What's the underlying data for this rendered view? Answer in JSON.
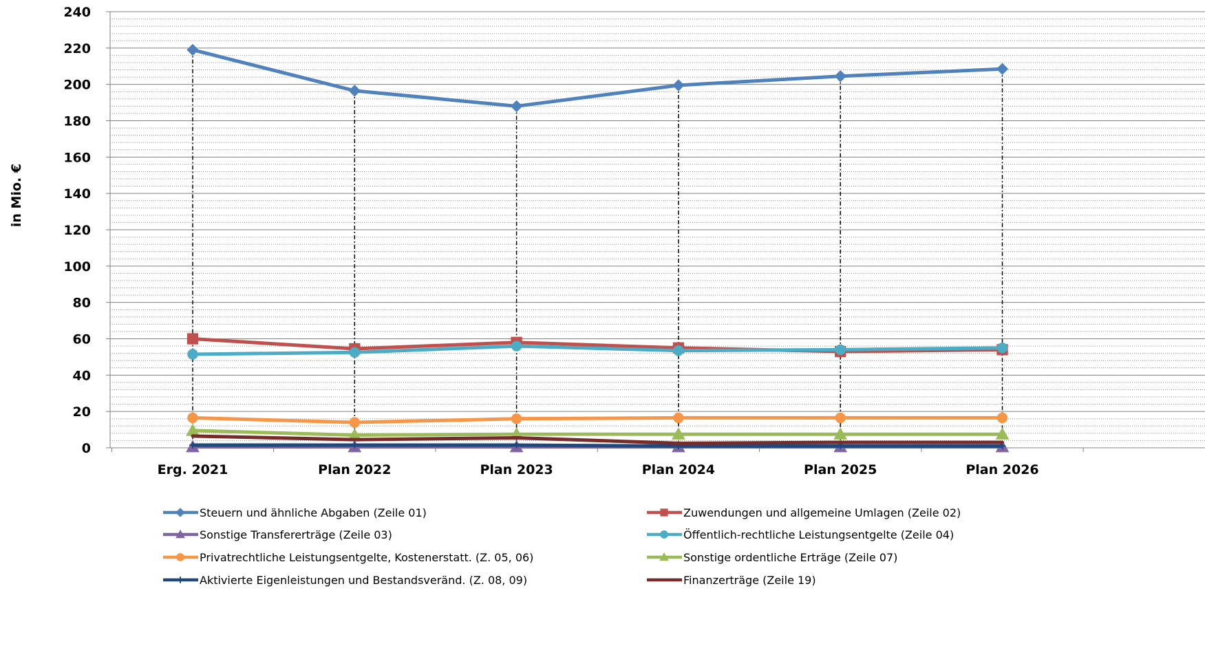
{
  "chart_data": {
    "type": "line",
    "ylabel": "in Mio. €",
    "ylim": [
      0,
      240
    ],
    "y_ticks": [
      0,
      20,
      40,
      60,
      80,
      100,
      120,
      140,
      160,
      180,
      200,
      220,
      240
    ],
    "y_tick_labels": [
      "0",
      "20",
      "40",
      "60",
      "80",
      "100",
      "120",
      "140",
      "160",
      "180",
      "200",
      "220",
      "240"
    ],
    "grid": "major solid, minor dotted",
    "drop_lines": true,
    "legend_position": "bottom",
    "categories": [
      "Erg. 2021",
      "Plan 2022",
      "Plan 2023",
      "Plan 2024",
      "Plan 2025",
      "Plan 2026"
    ],
    "series": [
      {
        "name": "Steuern und ähnliche Abgaben (Zeile 01)",
        "color": "#4F81BD",
        "marker": "diamond",
        "values": [
          219,
          196.5,
          188,
          199.5,
          204.5,
          208.5
        ]
      },
      {
        "name": "Zuwendungen und allgemeine Umlagen (Zeile 02)",
        "color": "#C0504D",
        "marker": "square",
        "values": [
          60,
          54.5,
          58,
          55,
          53,
          54
        ]
      },
      {
        "name": "Sonstige Transfererträge (Zeile 03)",
        "color": "#8064A2",
        "marker": "triangle",
        "values": [
          0.5,
          0.5,
          0.5,
          0.5,
          0.5,
          0.5
        ]
      },
      {
        "name": "Öffentlich-rechtliche Leistungsentgelte (Zeile 04)",
        "color": "#4BACC6",
        "marker": "circle",
        "values": [
          51.5,
          52.5,
          56,
          53.5,
          54,
          55
        ]
      },
      {
        "name": "Privatrechtliche Leistungsentgelte, Kostenerstatt. (Z. 05, 06)",
        "color": "#F79646",
        "marker": "circle",
        "values": [
          16.5,
          14,
          16,
          16.5,
          16.5,
          16.5
        ]
      },
      {
        "name": "Sonstige ordentliche Erträge (Zeile 07)",
        "color": "#9BBB59",
        "marker": "triangle",
        "values": [
          9.5,
          7,
          7.5,
          7.5,
          7.5,
          7.5
        ]
      },
      {
        "name": "Aktivierte Eigenleistungen und Bestandsveränd. (Z. 08, 09)",
        "color": "#1F497D",
        "marker": "plus",
        "values": [
          1.5,
          1.5,
          1.5,
          1,
          1,
          1
        ]
      },
      {
        "name": "Finanzerträge (Zeile 19)",
        "color": "#772C2A",
        "marker": "none",
        "values": [
          6.5,
          4.5,
          5.5,
          2.5,
          3,
          3
        ]
      }
    ]
  }
}
